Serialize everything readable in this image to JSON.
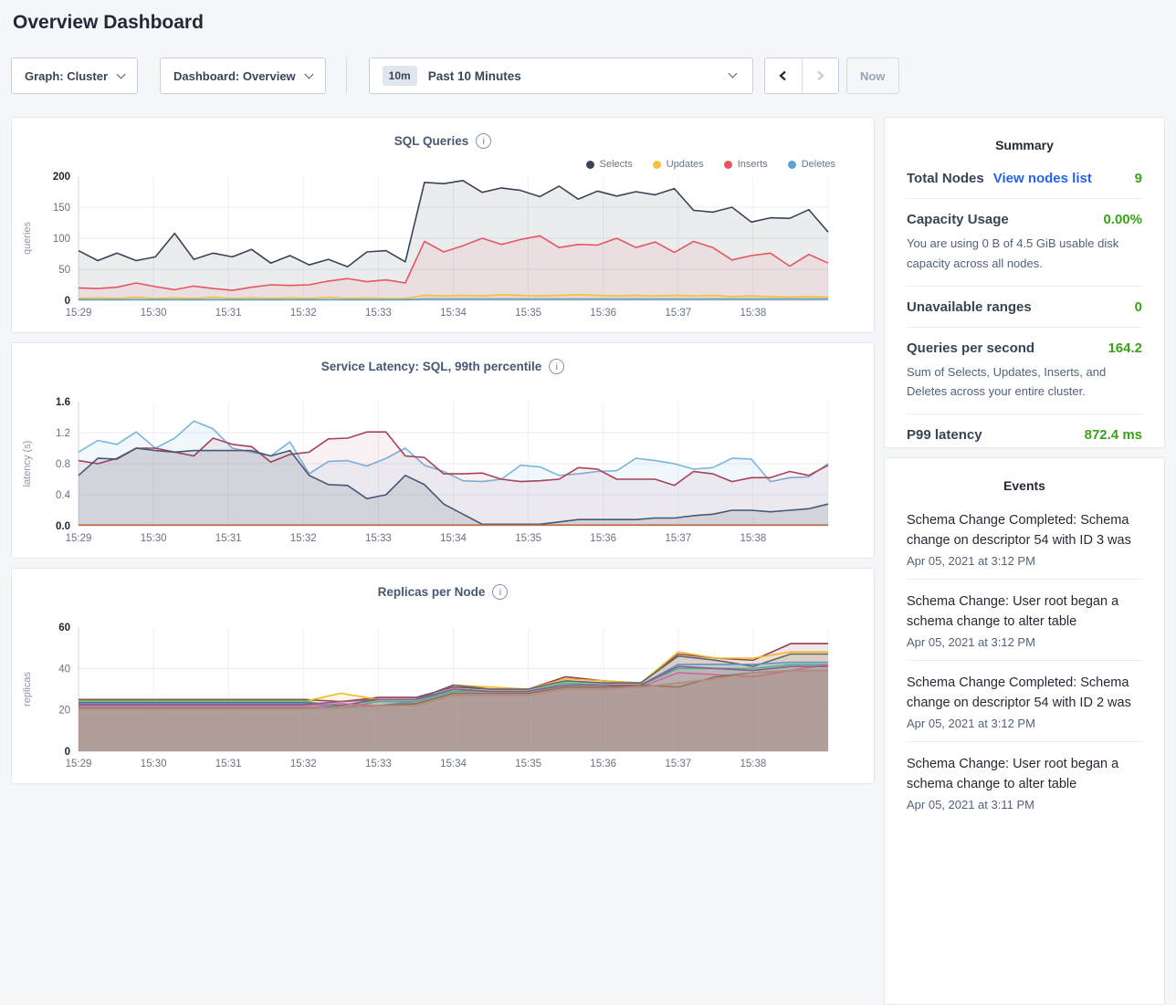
{
  "page": {
    "title": "Overview Dashboard"
  },
  "colors": {
    "accent_green": "#3aa317",
    "link_blue": "#2563eb"
  },
  "icons": {
    "chevron_down": "css-chevron-down",
    "chevron_left": "svg-chevron-left",
    "chevron_right": "svg-chevron-right",
    "info": "i"
  },
  "toolbar": {
    "graph_label": "Graph: Cluster",
    "dashboard_label": "Dashboard: Overview",
    "time_badge": "10m",
    "time_label": "Past 10 Minutes",
    "now_label": "Now"
  },
  "summary": {
    "title": "Summary",
    "rows": [
      {
        "label": "Total Nodes",
        "link": "View nodes list",
        "value": "9",
        "desc": ""
      },
      {
        "label": "Capacity Usage",
        "link": "",
        "value": "0.00%",
        "desc": "You are using 0 B of 4.5 GiB usable disk capacity across all nodes."
      },
      {
        "label": "Unavailable ranges",
        "link": "",
        "value": "0",
        "desc": ""
      },
      {
        "label": "Queries per second",
        "link": "",
        "value": "164.2",
        "desc": "Sum of Selects, Updates, Inserts, and Deletes across your entire cluster."
      },
      {
        "label": "P99 latency",
        "link": "",
        "value": "872.4 ms",
        "desc": ""
      }
    ]
  },
  "events": {
    "title": "Events",
    "items": [
      {
        "text": "Schema Change Completed: Schema change on descriptor 54 with ID 3 was",
        "time": "Apr 05, 2021 at 3:12 PM"
      },
      {
        "text": "Schema Change: User root began a schema change to alter table",
        "time": "Apr 05, 2021 at 3:12 PM"
      },
      {
        "text": "Schema Change Completed: Schema change on descriptor 54 with ID 2 was",
        "time": "Apr 05, 2021 at 3:12 PM"
      },
      {
        "text": "Schema Change: User root began a schema change to alter table",
        "time": "Apr 05, 2021 at 3:11 PM"
      }
    ]
  },
  "chart_data": [
    {
      "type": "area",
      "title": "SQL Queries",
      "xlabel": "",
      "ylabel": "queries",
      "ylim": [
        0,
        200
      ],
      "yticks": [
        0,
        50,
        100,
        150,
        200
      ],
      "ytick_labels": [
        "0",
        "50",
        "100",
        "150",
        "200"
      ],
      "xtick_labels": [
        "15:29",
        "15:30",
        "15:31",
        "15:32",
        "15:33",
        "15:34",
        "15:35",
        "15:36",
        "15:37",
        "15:38"
      ],
      "grid": true,
      "legend_position": "top-right",
      "legend": [
        {
          "name": "Selects",
          "color": "#394455"
        },
        {
          "name": "Updates",
          "color": "#f5c035"
        },
        {
          "name": "Inserts",
          "color": "#e6565e"
        },
        {
          "name": "Deletes",
          "color": "#5ba3d0"
        }
      ],
      "series": [
        {
          "name": "Selects",
          "color": "#394455",
          "fill_opacity": 0.1,
          "values": [
            80,
            64,
            76,
            64,
            70,
            108,
            66,
            76,
            70,
            82,
            60,
            72,
            57,
            66,
            54,
            78,
            80,
            62,
            190,
            188,
            193,
            174,
            181,
            177,
            167,
            184,
            163,
            176,
            168,
            175,
            170,
            180,
            145,
            142,
            150,
            126,
            133,
            132,
            146,
            110
          ]
        },
        {
          "name": "Inserts",
          "color": "#e6565e",
          "fill_opacity": 0.09,
          "values": [
            20,
            19,
            21,
            28,
            22,
            17,
            23,
            19,
            16,
            21,
            25,
            24,
            25,
            31,
            35,
            30,
            33,
            28,
            95,
            78,
            88,
            100,
            90,
            98,
            104,
            85,
            90,
            89,
            100,
            85,
            94,
            77,
            95,
            85,
            65,
            72,
            76,
            55,
            74,
            60
          ]
        },
        {
          "name": "Updates",
          "color": "#f5c035",
          "fill_opacity": 0.12,
          "values": [
            3,
            4,
            3,
            5,
            3,
            4,
            3,
            5,
            3,
            4,
            3,
            4,
            3,
            5,
            3,
            4,
            3,
            3,
            8,
            7,
            8,
            7,
            9,
            8,
            7,
            8,
            9,
            8,
            7,
            8,
            7,
            8,
            7,
            8,
            6,
            7,
            6,
            5,
            6,
            5
          ]
        },
        {
          "name": "Deletes",
          "color": "#5ba3d0",
          "fill_opacity": 0,
          "values": [
            1,
            1,
            1,
            1,
            1,
            1,
            1,
            1,
            1,
            1,
            1,
            1,
            1,
            1,
            1,
            1,
            1,
            1,
            2,
            2,
            2,
            2,
            2,
            2,
            2,
            2,
            2,
            2,
            2,
            2,
            2,
            2,
            2,
            2,
            2,
            2,
            2,
            2,
            2,
            2
          ]
        }
      ]
    },
    {
      "type": "area",
      "title": "Service Latency: SQL, 99th percentile",
      "xlabel": "",
      "ylabel": "latency (s)",
      "ylim": [
        0,
        1.6
      ],
      "yticks": [
        0,
        0.4,
        0.8,
        1.2,
        1.6
      ],
      "ytick_labels": [
        "0.0",
        "0.4",
        "0.8",
        "1.2",
        "1.6"
      ],
      "xtick_labels": [
        "15:29",
        "15:30",
        "15:31",
        "15:32",
        "15:33",
        "15:34",
        "15:35",
        "15:36",
        "15:37",
        "15:38"
      ],
      "grid": true,
      "legend_position": "none",
      "legend": [],
      "series": [
        {
          "name": "line-1",
          "color": "#79b6dd",
          "fill_opacity": 0.1,
          "values": [
            0.95,
            1.1,
            1.05,
            1.21,
            1.0,
            1.13,
            1.35,
            1.25,
            1.0,
            0.95,
            0.9,
            1.08,
            0.67,
            0.83,
            0.84,
            0.77,
            0.87,
            1.0,
            0.78,
            0.7,
            0.58,
            0.57,
            0.6,
            0.78,
            0.76,
            0.65,
            0.67,
            0.7,
            0.71,
            0.87,
            0.84,
            0.8,
            0.73,
            0.75,
            0.87,
            0.86,
            0.57,
            0.62,
            0.63,
            0.8
          ]
        },
        {
          "name": "line-2",
          "color": "#a8415a",
          "fill_opacity": 0.08,
          "values": [
            0.84,
            0.8,
            0.87,
            1.0,
            1.0,
            0.95,
            0.9,
            1.13,
            1.05,
            1.02,
            0.82,
            0.92,
            0.95,
            1.12,
            1.13,
            1.21,
            1.21,
            0.9,
            0.88,
            0.67,
            0.67,
            0.68,
            0.6,
            0.57,
            0.58,
            0.6,
            0.75,
            0.73,
            0.6,
            0.6,
            0.6,
            0.52,
            0.7,
            0.67,
            0.57,
            0.62,
            0.62,
            0.7,
            0.65,
            0.78
          ]
        },
        {
          "name": "line-3",
          "color": "#475872",
          "fill_opacity": 0.15,
          "values": [
            0.65,
            0.87,
            0.86,
            1.0,
            0.97,
            0.95,
            0.97,
            0.97,
            0.97,
            0.97,
            0.9,
            0.97,
            0.65,
            0.53,
            0.52,
            0.35,
            0.4,
            0.65,
            0.53,
            0.28,
            0.15,
            0.02,
            0.02,
            0.02,
            0.02,
            0.05,
            0.08,
            0.08,
            0.08,
            0.08,
            0.1,
            0.1,
            0.13,
            0.15,
            0.2,
            0.2,
            0.18,
            0.2,
            0.22,
            0.28
          ]
        },
        {
          "name": "line-4",
          "color": "#c0703f",
          "fill_opacity": 0,
          "values": [
            0.01,
            0.01
          ]
        }
      ]
    },
    {
      "type": "area",
      "title": "Replicas per Node",
      "xlabel": "",
      "ylabel": "replicas",
      "ylim": [
        0,
        60
      ],
      "yticks": [
        0,
        20,
        40,
        60
      ],
      "ytick_labels": [
        "0",
        "20",
        "40",
        "60"
      ],
      "xtick_labels": [
        "15:29",
        "15:30",
        "15:31",
        "15:32",
        "15:33",
        "15:34",
        "15:35",
        "15:36",
        "15:37",
        "15:38"
      ],
      "grid": true,
      "legend_position": "none",
      "legend": [],
      "series": [
        {
          "name": "node-1",
          "color": "#8f3c5c",
          "fill_opacity": 0.13,
          "values": [
            25,
            25,
            25,
            25,
            25,
            25,
            25,
            24,
            26,
            26,
            31,
            30,
            30,
            36,
            34,
            33,
            47,
            45,
            44,
            52,
            52
          ]
        },
        {
          "name": "node-2",
          "color": "#f0b82a",
          "fill_opacity": 0.13,
          "values": [
            24,
            24,
            24,
            24,
            24,
            24,
            24,
            28,
            25,
            25,
            32,
            31,
            30,
            35,
            34,
            33,
            48,
            45,
            45,
            48,
            48
          ]
        },
        {
          "name": "node-3",
          "color": "#5c6670",
          "fill_opacity": 0.13,
          "values": [
            23.5,
            23.5,
            23.5,
            23.5,
            23.5,
            23.5,
            23.5,
            22,
            25,
            25,
            32,
            30,
            30,
            34,
            33,
            33,
            46,
            44,
            41,
            47,
            47
          ]
        },
        {
          "name": "node-4",
          "color": "#5b94cf",
          "fill_opacity": 0.13,
          "values": [
            23,
            23,
            23,
            23,
            23,
            23,
            23,
            21,
            22,
            24,
            30,
            29,
            29,
            33,
            32,
            32,
            42,
            42,
            42,
            43,
            43
          ]
        },
        {
          "name": "node-5",
          "color": "#52b788",
          "fill_opacity": 0.13,
          "values": [
            24.5,
            24.5,
            24.5,
            24.5,
            24.5,
            24.5,
            24.5,
            21,
            24,
            24,
            29,
            29,
            29,
            33,
            32,
            32,
            40,
            40,
            40,
            42,
            42
          ]
        },
        {
          "name": "node-6",
          "color": "#df6a9a",
          "fill_opacity": 0.13,
          "values": [
            22,
            22,
            22,
            22,
            22,
            22,
            22,
            23,
            22,
            23,
            28,
            28,
            28,
            31,
            31,
            31,
            38,
            37,
            36,
            39,
            42
          ]
        },
        {
          "name": "node-7",
          "color": "#8a5c8f",
          "fill_opacity": 0.13,
          "values": [
            22.5,
            22.5,
            22.5,
            22.5,
            22.5,
            22.5,
            22.5,
            24,
            25,
            25,
            30,
            29,
            29,
            32,
            32,
            32,
            41,
            40,
            39,
            41,
            41
          ]
        },
        {
          "name": "node-8",
          "color": "#8a6e50",
          "fill_opacity": 0.13,
          "values": [
            21,
            21,
            21,
            21,
            21,
            21,
            21,
            21,
            22,
            23,
            28,
            28,
            28,
            31,
            31,
            32,
            31,
            36,
            38,
            39,
            39
          ]
        },
        {
          "name": "node-9",
          "color": "#b08d7e",
          "fill_opacity": 0.3,
          "values": [
            20.5,
            20.5,
            20.5,
            20.5,
            20.5,
            20.5,
            20.5,
            21,
            22,
            22,
            27,
            27,
            27,
            30,
            30,
            31,
            33,
            35,
            38,
            39,
            39
          ]
        }
      ]
    }
  ]
}
